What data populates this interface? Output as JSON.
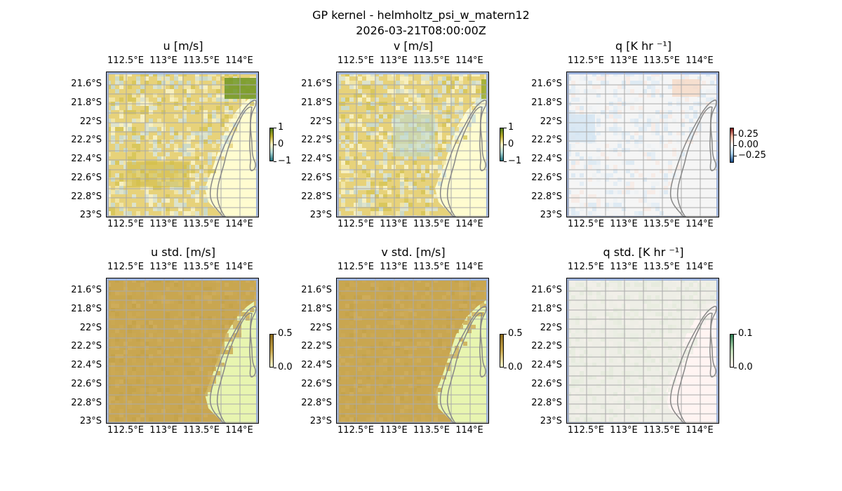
{
  "figure": {
    "title_line1": "GP kernel - helmholtz_psi_w_matern12",
    "title_line2": "2026-03-21T08:00:00Z"
  },
  "axes": {
    "x_ticks": [
      "112.5°E",
      "113°E",
      "113.5°E",
      "114°E"
    ],
    "y_ticks": [
      "21.6°S",
      "21.8°S",
      "22°S",
      "22.2°S",
      "22.4°S",
      "22.6°S",
      "22.8°S",
      "23°S"
    ]
  },
  "panels": [
    {
      "title": "u [m/s]",
      "cb_ticks": [
        "1",
        "0",
        "−1"
      ],
      "cmap": "div_olive_teal"
    },
    {
      "title": "v [m/s]",
      "cb_ticks": [
        "1",
        "0",
        "−1"
      ],
      "cmap": "div_olive_teal"
    },
    {
      "title": "q [K hr ⁻¹]",
      "cb_ticks": [
        "0.25",
        "0.00",
        "−0.25"
      ],
      "cmap": "div_red_blue"
    },
    {
      "title": "u std. [m/s]",
      "cb_ticks": [
        "0.5",
        "0.0"
      ],
      "cmap": "seq_olive"
    },
    {
      "title": "v std. [m/s]",
      "cb_ticks": [
        "0.5",
        "0.0"
      ],
      "cmap": "seq_olive"
    },
    {
      "title": "q std. [K hr ⁻¹]",
      "cb_ticks": [
        "0.1",
        "0.0"
      ],
      "cmap": "seq_green_pink"
    }
  ],
  "colors": {
    "ocean_edge": "#9db3dd",
    "coast": "#888888",
    "grid": "#aaaaaa"
  }
}
